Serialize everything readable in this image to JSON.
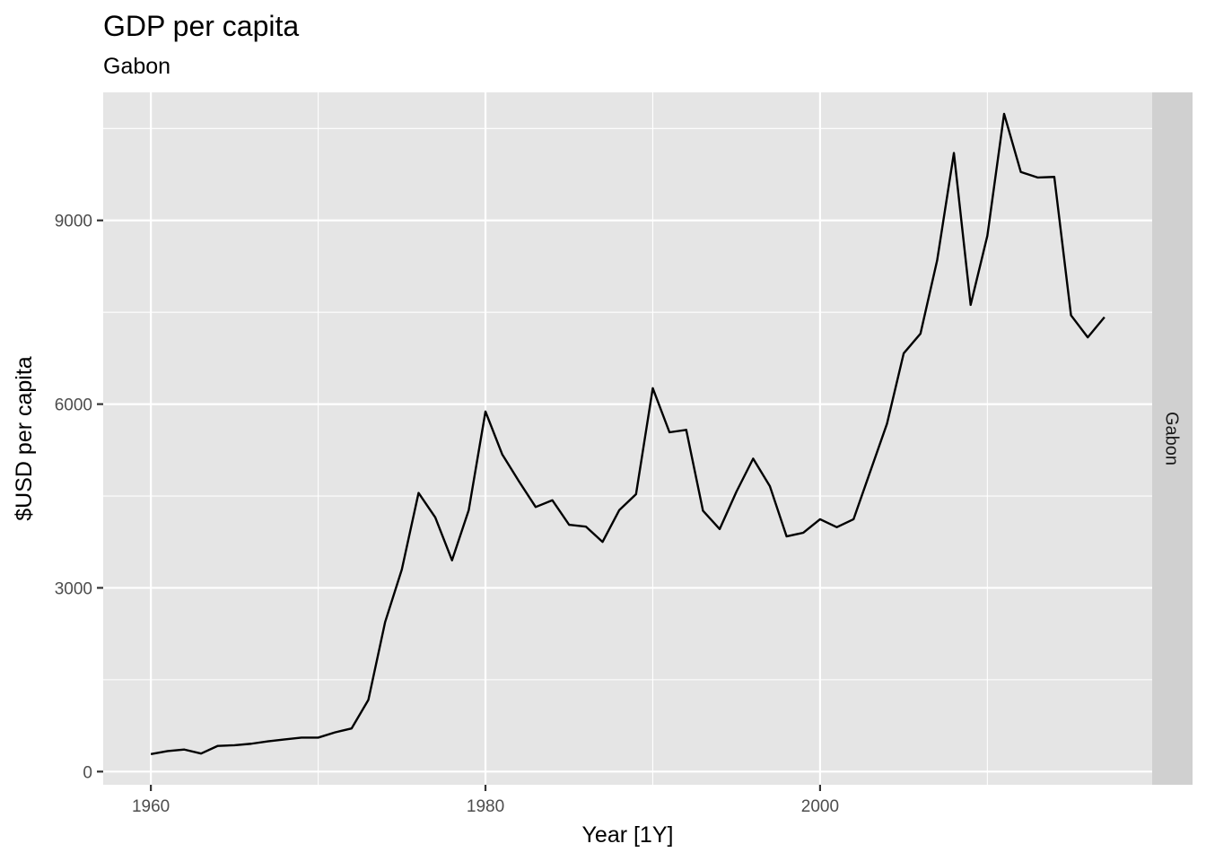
{
  "chart_data": {
    "type": "line",
    "title": "GDP per capita",
    "subtitle": "Gabon",
    "xlabel": "Year [1Y]",
    "ylabel": "$USD per capita",
    "facet_label": "Gabon",
    "xlim": [
      1957.15,
      2019.85
    ],
    "ylim": [
      -215,
      11090
    ],
    "x_ticks": [
      1960,
      1980,
      2000
    ],
    "x_tick_labels": [
      "1960",
      "1980",
      "2000"
    ],
    "x_minor_ticks": [
      1970,
      1990,
      2010
    ],
    "y_ticks": [
      0,
      3000,
      6000,
      9000
    ],
    "y_tick_labels": [
      "0",
      "3000",
      "6000",
      "9000"
    ],
    "y_minor_ticks": [
      1500,
      4500,
      7500,
      10500
    ],
    "grid": true,
    "colors": {
      "line": "#000000",
      "panel": "#e5e5e5",
      "strip": "#d9d9d9",
      "grid": "#ffffff"
    },
    "series": [
      {
        "x": [
          1960,
          1961,
          1962,
          1963,
          1964,
          1965,
          1966,
          1967,
          1968,
          1969,
          1970,
          1971,
          1972,
          1973,
          1974,
          1975,
          1976,
          1977,
          1978,
          1979,
          1980,
          1981,
          1982,
          1983,
          1984,
          1985,
          1986,
          1987,
          1988,
          1989,
          1990,
          1991,
          1992,
          1993,
          1994,
          1995,
          1996,
          1997,
          1998,
          1999,
          2000,
          2001,
          2002,
          2003,
          2004,
          2005,
          2006,
          2007,
          2008,
          2009,
          2010,
          2011,
          2012,
          2013,
          2014,
          2015,
          2016,
          2017
        ],
        "values": [
          285,
          335,
          360,
          295,
          420,
          430,
          455,
          495,
          525,
          555,
          555,
          640,
          705,
          1170,
          2440,
          3300,
          4550,
          4150,
          3450,
          4270,
          5880,
          5180,
          4740,
          4320,
          4430,
          4030,
          4000,
          3750,
          4270,
          4530,
          6260,
          5540,
          5580,
          4260,
          3960,
          4570,
          5110,
          4660,
          3840,
          3900,
          4120,
          3990,
          4120,
          4900,
          5680,
          6830,
          7150,
          8350,
          10100,
          7620,
          8750,
          10740,
          9790,
          9700,
          9710,
          7450,
          7090,
          7420
        ]
      }
    ]
  }
}
